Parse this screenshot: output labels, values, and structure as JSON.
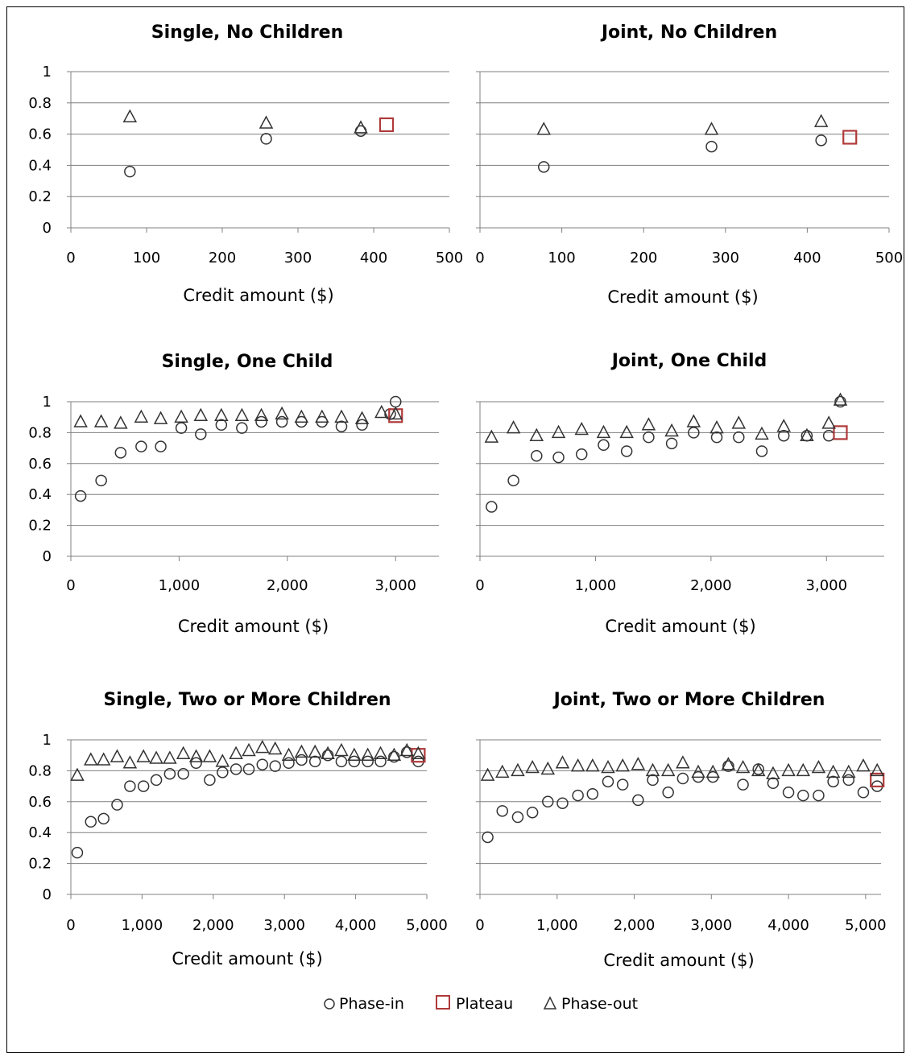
{
  "colors": {
    "phase_in": "#333333",
    "plateau": "#b03a3a",
    "phase_out": "#333333",
    "grid": "#7f7f7f"
  },
  "legend": {
    "phase_in": "Phase-in",
    "plateau": "Plateau",
    "phase_out": "Phase-out"
  },
  "chart_data": [
    {
      "type": "scatter",
      "title": "Single, No Children",
      "xlabel": "Credit amount ($)",
      "ylabel": "",
      "xlim": [
        0,
        500
      ],
      "ylim": [
        0,
        1
      ],
      "xticks": [
        "0",
        "100",
        "200",
        "300",
        "400",
        "500"
      ],
      "yticks": [
        "0",
        "0.2",
        "0.4",
        "0.6",
        "0.8",
        "1"
      ],
      "grid": true,
      "series": [
        {
          "name": "Phase-in",
          "marker": "circle",
          "points": [
            [
              78,
              0.36
            ],
            [
              258,
              0.57
            ],
            [
              383,
              0.62
            ]
          ]
        },
        {
          "name": "Plateau",
          "marker": "square",
          "points": [
            [
              417,
              0.66
            ]
          ]
        },
        {
          "name": "Phase-out",
          "marker": "triangle",
          "points": [
            [
              78,
              0.71
            ],
            [
              258,
              0.67
            ],
            [
              383,
              0.64
            ]
          ]
        }
      ]
    },
    {
      "type": "scatter",
      "title": "Joint, No Children",
      "xlabel": "Credit amount ($)",
      "ylabel": "",
      "xlim": [
        0,
        500
      ],
      "ylim": [
        0,
        1
      ],
      "xticks": [
        "0",
        "100",
        "200",
        "300",
        "400",
        "500"
      ],
      "yticks": [],
      "grid": true,
      "series": [
        {
          "name": "Phase-in",
          "marker": "circle",
          "points": [
            [
              78,
              0.39
            ],
            [
              283,
              0.52
            ],
            [
              417,
              0.56
            ]
          ]
        },
        {
          "name": "Plateau",
          "marker": "square",
          "points": [
            [
              452,
              0.58
            ]
          ]
        },
        {
          "name": "Phase-out",
          "marker": "triangle",
          "points": [
            [
              78,
              0.63
            ],
            [
              283,
              0.63
            ],
            [
              417,
              0.68
            ]
          ]
        }
      ]
    },
    {
      "type": "scatter",
      "title": "Single, One Child",
      "xlabel": "Credit amount ($)",
      "ylabel": "",
      "xlim": [
        0,
        3400
      ],
      "ylim": [
        0,
        1
      ],
      "xticks": [
        "0",
        "1,000",
        "2,000",
        "3,000"
      ],
      "yticks": [
        "0",
        "0.2",
        "0.4",
        "0.6",
        "0.8",
        "1"
      ],
      "grid": true,
      "series": [
        {
          "name": "Phase-in",
          "marker": "circle",
          "points": [
            [
              90,
              0.39
            ],
            [
              280,
              0.49
            ],
            [
              460,
              0.67
            ],
            [
              650,
              0.71
            ],
            [
              830,
              0.71
            ],
            [
              1020,
              0.83
            ],
            [
              1200,
              0.79
            ],
            [
              1390,
              0.85
            ],
            [
              1580,
              0.83
            ],
            [
              1760,
              0.87
            ],
            [
              1950,
              0.87
            ],
            [
              2130,
              0.87
            ],
            [
              2320,
              0.87
            ],
            [
              2500,
              0.84
            ],
            [
              2690,
              0.85
            ],
            [
              2950,
              0.92
            ],
            [
              3000,
              1.0
            ]
          ]
        },
        {
          "name": "Plateau",
          "marker": "square",
          "points": [
            [
              3000,
              0.91
            ]
          ]
        },
        {
          "name": "Phase-out",
          "marker": "triangle",
          "points": [
            [
              90,
              0.87
            ],
            [
              280,
              0.87
            ],
            [
              460,
              0.86
            ],
            [
              650,
              0.9
            ],
            [
              830,
              0.89
            ],
            [
              1020,
              0.9
            ],
            [
              1200,
              0.91
            ],
            [
              1390,
              0.91
            ],
            [
              1580,
              0.91
            ],
            [
              1760,
              0.91
            ],
            [
              1950,
              0.92
            ],
            [
              2130,
              0.9
            ],
            [
              2320,
              0.9
            ],
            [
              2500,
              0.9
            ],
            [
              2690,
              0.89
            ],
            [
              2870,
              0.93
            ],
            [
              3000,
              0.92
            ]
          ]
        }
      ]
    },
    {
      "type": "scatter",
      "title": "Joint, One Child",
      "xlabel": "Credit amount ($)",
      "ylabel": "",
      "xlim": [
        0,
        3500
      ],
      "ylim": [
        0,
        1
      ],
      "xticks": [
        "0",
        "1,000",
        "2,000",
        "3,000"
      ],
      "yticks": [],
      "grid": true,
      "series": [
        {
          "name": "Phase-in",
          "marker": "circle",
          "points": [
            [
              100,
              0.32
            ],
            [
              290,
              0.49
            ],
            [
              490,
              0.65
            ],
            [
              680,
              0.64
            ],
            [
              880,
              0.66
            ],
            [
              1070,
              0.72
            ],
            [
              1270,
              0.68
            ],
            [
              1460,
              0.77
            ],
            [
              1660,
              0.73
            ],
            [
              1850,
              0.8
            ],
            [
              2050,
              0.77
            ],
            [
              2240,
              0.77
            ],
            [
              2440,
              0.68
            ],
            [
              2630,
              0.78
            ],
            [
              2830,
              0.78
            ],
            [
              3020,
              0.78
            ],
            [
              3120,
              1.0
            ]
          ]
        },
        {
          "name": "Plateau",
          "marker": "square",
          "points": [
            [
              3120,
              0.8
            ]
          ]
        },
        {
          "name": "Phase-out",
          "marker": "triangle",
          "points": [
            [
              100,
              0.77
            ],
            [
              290,
              0.83
            ],
            [
              490,
              0.78
            ],
            [
              680,
              0.8
            ],
            [
              880,
              0.82
            ],
            [
              1070,
              0.8
            ],
            [
              1270,
              0.8
            ],
            [
              1460,
              0.85
            ],
            [
              1660,
              0.81
            ],
            [
              1850,
              0.87
            ],
            [
              2050,
              0.83
            ],
            [
              2240,
              0.86
            ],
            [
              2440,
              0.79
            ],
            [
              2630,
              0.84
            ],
            [
              2830,
              0.78
            ],
            [
              3020,
              0.86
            ],
            [
              3120,
              1.01
            ]
          ]
        }
      ]
    },
    {
      "type": "scatter",
      "title": "Single, Two or More Children",
      "xlabel": "Credit amount ($)",
      "ylabel": "",
      "xlim": [
        0,
        5000
      ],
      "ylim": [
        0,
        1
      ],
      "xticks": [
        "0",
        "1,000",
        "2,000",
        "3,000",
        "4,000",
        "5,000"
      ],
      "yticks": [
        "0",
        "0.2",
        "0.4",
        "0.6",
        "0.8",
        "1"
      ],
      "grid": true,
      "series": [
        {
          "name": "Phase-in",
          "marker": "circle",
          "points": [
            [
              90,
              0.27
            ],
            [
              280,
              0.47
            ],
            [
              460,
              0.49
            ],
            [
              650,
              0.58
            ],
            [
              830,
              0.7
            ],
            [
              1020,
              0.7
            ],
            [
              1200,
              0.74
            ],
            [
              1390,
              0.78
            ],
            [
              1580,
              0.78
            ],
            [
              1760,
              0.85
            ],
            [
              1950,
              0.74
            ],
            [
              2130,
              0.79
            ],
            [
              2320,
              0.81
            ],
            [
              2500,
              0.81
            ],
            [
              2690,
              0.84
            ],
            [
              2870,
              0.83
            ],
            [
              3060,
              0.85
            ],
            [
              3240,
              0.87
            ],
            [
              3430,
              0.86
            ],
            [
              3610,
              0.9
            ],
            [
              3800,
              0.86
            ],
            [
              3980,
              0.86
            ],
            [
              4170,
              0.86
            ],
            [
              4350,
              0.86
            ],
            [
              4540,
              0.89
            ],
            [
              4720,
              0.92
            ],
            [
              4880,
              0.86
            ]
          ]
        },
        {
          "name": "Plateau",
          "marker": "square",
          "points": [
            [
              4880,
              0.9
            ]
          ]
        },
        {
          "name": "Phase-out",
          "marker": "triangle",
          "points": [
            [
              90,
              0.77
            ],
            [
              280,
              0.87
            ],
            [
              460,
              0.87
            ],
            [
              650,
              0.89
            ],
            [
              830,
              0.85
            ],
            [
              1020,
              0.89
            ],
            [
              1200,
              0.88
            ],
            [
              1390,
              0.88
            ],
            [
              1580,
              0.91
            ],
            [
              1760,
              0.89
            ],
            [
              1950,
              0.89
            ],
            [
              2130,
              0.86
            ],
            [
              2320,
              0.91
            ],
            [
              2500,
              0.93
            ],
            [
              2690,
              0.95
            ],
            [
              2870,
              0.94
            ],
            [
              3060,
              0.9
            ],
            [
              3240,
              0.92
            ],
            [
              3430,
              0.92
            ],
            [
              3610,
              0.91
            ],
            [
              3800,
              0.93
            ],
            [
              3980,
              0.9
            ],
            [
              4170,
              0.9
            ],
            [
              4350,
              0.91
            ],
            [
              4540,
              0.9
            ],
            [
              4720,
              0.93
            ],
            [
              4880,
              0.91
            ]
          ]
        }
      ]
    },
    {
      "type": "scatter",
      "title": "Joint, Two or More Children",
      "xlabel": "Credit amount ($)",
      "ylabel": "",
      "xlim": [
        0,
        5200
      ],
      "ylim": [
        0,
        1
      ],
      "xticks": [
        "0",
        "1,000",
        "2,000",
        "3,000",
        "4,000",
        "5,000"
      ],
      "yticks": [],
      "grid": true,
      "series": [
        {
          "name": "Phase-in",
          "marker": "circle",
          "points": [
            [
              100,
              0.37
            ],
            [
              290,
              0.54
            ],
            [
              490,
              0.5
            ],
            [
              680,
              0.53
            ],
            [
              880,
              0.6
            ],
            [
              1070,
              0.59
            ],
            [
              1270,
              0.64
            ],
            [
              1460,
              0.65
            ],
            [
              1660,
              0.73
            ],
            [
              1850,
              0.71
            ],
            [
              2050,
              0.61
            ],
            [
              2240,
              0.74
            ],
            [
              2440,
              0.66
            ],
            [
              2630,
              0.75
            ],
            [
              2830,
              0.76
            ],
            [
              3020,
              0.76
            ],
            [
              3220,
              0.83
            ],
            [
              3410,
              0.71
            ],
            [
              3610,
              0.81
            ],
            [
              3800,
              0.72
            ],
            [
              4000,
              0.66
            ],
            [
              4190,
              0.64
            ],
            [
              4390,
              0.64
            ],
            [
              4580,
              0.73
            ],
            [
              4780,
              0.74
            ],
            [
              4970,
              0.66
            ],
            [
              5150,
              0.7
            ]
          ]
        },
        {
          "name": "Plateau",
          "marker": "square",
          "points": [
            [
              5150,
              0.74
            ]
          ]
        },
        {
          "name": "Phase-out",
          "marker": "triangle",
          "points": [
            [
              100,
              0.77
            ],
            [
              290,
              0.79
            ],
            [
              490,
              0.8
            ],
            [
              680,
              0.82
            ],
            [
              880,
              0.81
            ],
            [
              1070,
              0.85
            ],
            [
              1270,
              0.83
            ],
            [
              1460,
              0.83
            ],
            [
              1660,
              0.82
            ],
            [
              1850,
              0.83
            ],
            [
              2050,
              0.84
            ],
            [
              2240,
              0.8
            ],
            [
              2440,
              0.8
            ],
            [
              2630,
              0.85
            ],
            [
              2830,
              0.79
            ],
            [
              3020,
              0.79
            ],
            [
              3220,
              0.84
            ],
            [
              3410,
              0.82
            ],
            [
              3610,
              0.8
            ],
            [
              3800,
              0.78
            ],
            [
              4000,
              0.8
            ],
            [
              4190,
              0.8
            ],
            [
              4390,
              0.82
            ],
            [
              4580,
              0.79
            ],
            [
              4780,
              0.79
            ],
            [
              4970,
              0.83
            ],
            [
              5150,
              0.8
            ]
          ]
        }
      ]
    }
  ]
}
